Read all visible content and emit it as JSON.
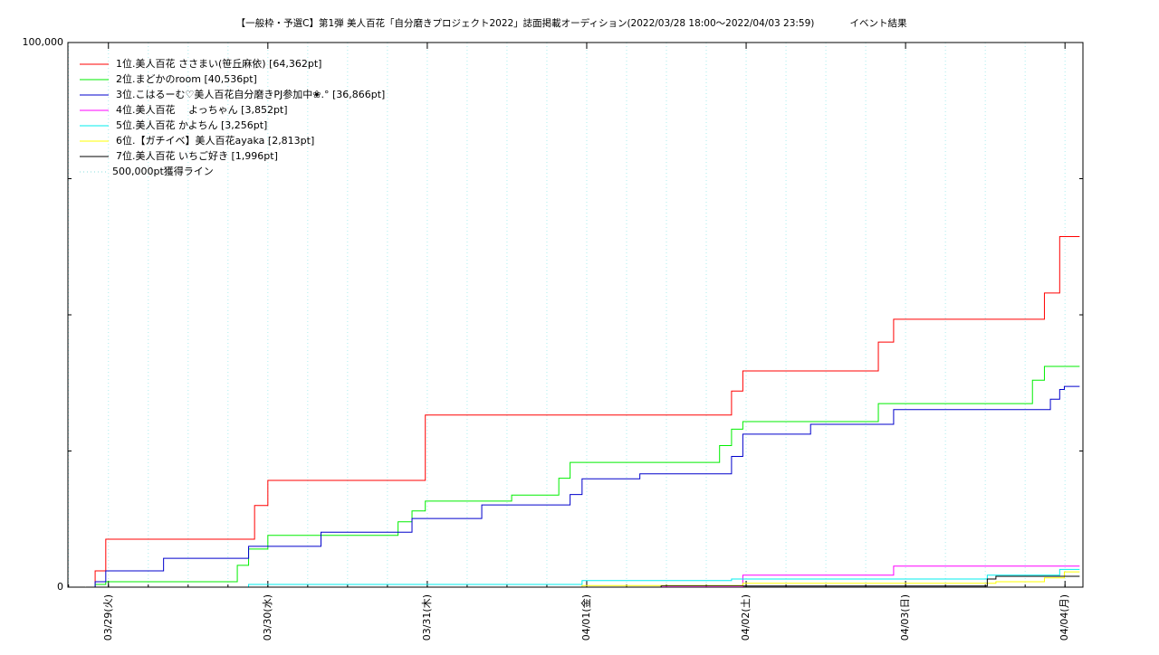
{
  "chart_data": {
    "type": "line",
    "step": true,
    "title": "【一般枠・予選C】第1弾 美人百花「自分磨きプロジェクト2022」誌面掲載オーディション(2022/03/28 18:00〜2022/04/03 23:59)",
    "subtitle": "イベント結果",
    "x": [
      -3.4,
      -2,
      -0.4,
      8.3,
      19.4,
      21.1,
      22,
      24,
      32,
      43.6,
      45.7,
      47.7,
      56.2,
      60.7,
      67.8,
      69.5,
      71.3,
      80,
      83.2,
      92,
      93.8,
      95.5,
      105.7,
      115.9,
      118.2,
      132.3,
      133.6,
      139.1,
      140.9,
      141.8,
      143.2,
      143.9,
      146.2
    ],
    "series": [
      {
        "name": "1位.美人百花 ささまい(笹丘麻依) [64,362pt]",
        "color": "#ff0000",
        "values": [
          0,
          3000,
          8800,
          8800,
          8800,
          8800,
          15000,
          19600,
          19600,
          19600,
          19600,
          31600,
          31600,
          31600,
          31600,
          31600,
          31600,
          31600,
          31600,
          31600,
          36000,
          39700,
          39700,
          45000,
          49200,
          49200,
          49200,
          49200,
          54000,
          54000,
          64362,
          64362,
          64362
        ]
      },
      {
        "name": "2位.まどかのroom [40,536pt]",
        "color": "#00ee00",
        "values": [
          0,
          500,
          1000,
          1000,
          4000,
          7000,
          7000,
          9500,
          9500,
          12000,
          14000,
          15800,
          15800,
          16900,
          20000,
          22900,
          22900,
          22900,
          22900,
          26000,
          29000,
          30400,
          30400,
          33700,
          33700,
          33700,
          33700,
          38000,
          40536,
          40536,
          40536,
          40536,
          40536
        ]
      },
      {
        "name": "3位.こはるーむ♡美人百花自分磨きPJ参加中❀.° [36,866pt]",
        "color": "#0000cc",
        "values": [
          0,
          1000,
          3000,
          5300,
          5300,
          7500,
          7500,
          7500,
          10100,
          10100,
          12600,
          12600,
          15100,
          15100,
          15100,
          17000,
          19900,
          20800,
          20800,
          20800,
          24000,
          28100,
          29900,
          29900,
          32600,
          32600,
          32600,
          32600,
          32600,
          34500,
          36300,
          36866,
          36866
        ]
      },
      {
        "name": "4位.美人百花　 よっちゃん [3,852pt]",
        "color": "#ff00ff",
        "values": [
          0,
          0,
          0,
          0,
          0,
          0,
          0,
          0,
          0,
          0,
          0,
          0,
          0,
          0,
          0,
          0,
          0,
          0,
          0,
          0,
          0,
          2200,
          2200,
          2200,
          3852,
          3852,
          3852,
          3852,
          3852,
          3852,
          3852,
          3852,
          3852
        ]
      },
      {
        "name": "5位.美人百花 かよちん [3,256pt]",
        "color": "#00eeee",
        "values": [
          0,
          0,
          0,
          0,
          0,
          500,
          500,
          500,
          500,
          500,
          500,
          500,
          500,
          500,
          500,
          500,
          1200,
          1200,
          1200,
          1200,
          1500,
          1500,
          1500,
          1500,
          1500,
          2200,
          2200,
          2200,
          2200,
          2200,
          3256,
          3256,
          3256
        ]
      },
      {
        "name": "6位.【ガチイベ】美人百花ayaka [2,813pt]",
        "color": "#ffff00",
        "values": [
          0,
          0,
          0,
          0,
          0,
          0,
          0,
          0,
          0,
          0,
          0,
          0,
          0,
          0,
          0,
          0,
          300,
          300,
          300,
          300,
          300,
          700,
          700,
          700,
          700,
          700,
          1000,
          1000,
          1700,
          1700,
          1700,
          2813,
          2813
        ]
      },
      {
        "name": "7位.美人百花 いちご好き [1,996pt]",
        "color": "#000000",
        "values": [
          0,
          0,
          0,
          0,
          0,
          0,
          0,
          0,
          0,
          0,
          0,
          0,
          0,
          0,
          0,
          0,
          0,
          0,
          200,
          200,
          200,
          200,
          200,
          200,
          200,
          1500,
          1996,
          1996,
          1996,
          1996,
          1996,
          1996,
          1996
        ]
      }
    ],
    "reference_line": {
      "name": "500,000pt獲得ライン",
      "value": 500000,
      "color": "#88dddd"
    },
    "xlim": [
      -6.1,
      146.7
    ],
    "xticks": [
      {
        "value": 0,
        "label": "03/29(火)"
      },
      {
        "value": 24,
        "label": "03/30(水)"
      },
      {
        "value": 48,
        "label": "03/31(木)"
      },
      {
        "value": 72,
        "label": "04/01(金)"
      },
      {
        "value": 96,
        "label": "04/02(土)"
      },
      {
        "value": 120,
        "label": "04/03(日)"
      },
      {
        "value": 144,
        "label": "04/04(月)"
      }
    ],
    "xgridticks": [
      -6,
      0,
      6,
      12,
      18,
      24,
      30,
      36,
      42,
      48,
      54,
      60,
      66,
      72,
      78,
      84,
      90,
      96,
      102,
      108,
      114,
      120,
      126,
      132,
      138,
      144
    ],
    "ylim": [
      0,
      100000
    ],
    "yticks": [
      0,
      {
        "value": 100000,
        "label": "100,000"
      }
    ],
    "yminorticks": [
      25000,
      50000,
      75000
    ],
    "grid": true
  }
}
